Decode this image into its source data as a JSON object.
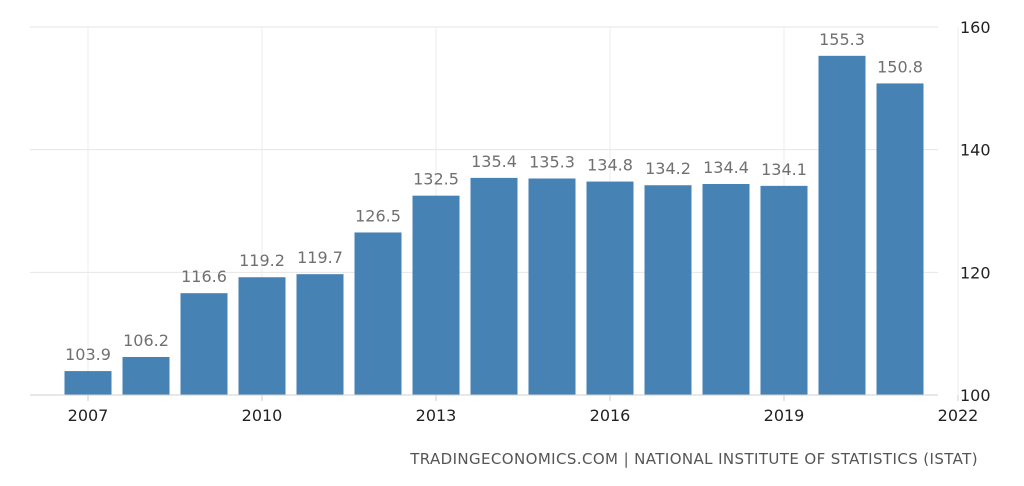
{
  "chart_data": {
    "type": "bar",
    "categories": [
      "2007",
      "2008",
      "2009",
      "2010",
      "2011",
      "2012",
      "2013",
      "2014",
      "2015",
      "2016",
      "2017",
      "2018",
      "2019",
      "2020",
      "2021"
    ],
    "values": [
      103.9,
      106.2,
      116.6,
      119.2,
      119.7,
      126.5,
      132.5,
      135.4,
      135.3,
      134.8,
      134.2,
      134.4,
      134.1,
      155.3,
      150.8
    ],
    "data_labels": [
      "103.9",
      "106.2",
      "116.6",
      "119.2",
      "119.7",
      "126.5",
      "132.5",
      "135.4",
      "135.3",
      "134.8",
      "134.2",
      "134.4",
      "134.1",
      "155.3",
      "150.8"
    ],
    "x_ticks": [
      "2007",
      "2010",
      "2013",
      "2016",
      "2019",
      "2022"
    ],
    "y_ticks": [
      "100",
      "120",
      "140",
      "160"
    ],
    "ylim": [
      100,
      160
    ],
    "grid": true,
    "y_axis_side": "right",
    "title": "",
    "xlabel": "",
    "ylabel": "",
    "bar_color": "#4682b4",
    "label_color": "#707070"
  },
  "source": "TRADINGECONOMICS.COM | NATIONAL INSTITUTE OF STATISTICS (ISTAT)"
}
